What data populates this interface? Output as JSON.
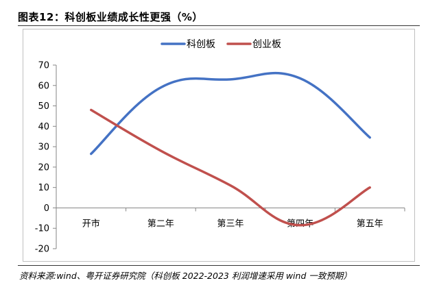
{
  "title": "图表12：科创板业绩成长性更强（%）",
  "source": "资料来源:wind、粤开证券研究院（科创板 2022-2023 利润增速采用 wind 一致预期）",
  "colors": {
    "series1": "#4472c4",
    "series2": "#c0504d",
    "axis": "#868686"
  },
  "chart_data": {
    "type": "line",
    "categories": [
      "开市",
      "第二年",
      "第三年",
      "第四年",
      "第五年"
    ],
    "series": [
      {
        "name": "科创板",
        "values": [
          26.5,
          59,
          63,
          63.5,
          34.5
        ]
      },
      {
        "name": "创业板",
        "values": [
          48,
          28,
          11,
          -8.5,
          10
        ]
      }
    ],
    "ylim": [
      -20,
      70
    ],
    "yticks": [
      "70",
      "60",
      "50",
      "40",
      "30",
      "20",
      "10",
      "0",
      "-10",
      "-20"
    ],
    "ytick_values": [
      70,
      60,
      50,
      40,
      30,
      20,
      10,
      0,
      -10,
      -20
    ],
    "smooth": true,
    "grid": false,
    "legend": "top-center"
  }
}
